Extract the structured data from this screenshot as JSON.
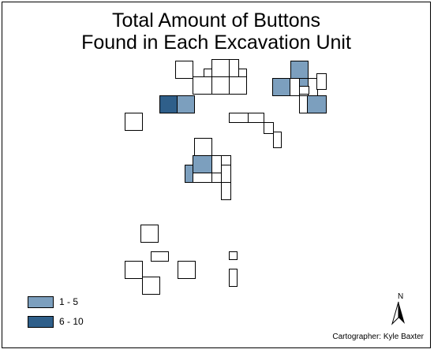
{
  "title": {
    "line1": "Total Amount of Buttons",
    "line2": "Found in Each Excavation Unit"
  },
  "legend": {
    "items": [
      {
        "label": "1 - 5",
        "color": "#7c9fbe"
      },
      {
        "label": "6 - 10",
        "color": "#2f5f8a"
      }
    ]
  },
  "north_arrow": {
    "label": "N",
    "icon": "north-arrow-icon"
  },
  "credit": "Cartographer: Kyle Baxter",
  "colors": {
    "outline": "#000000",
    "empty": "#ffffff"
  }
}
